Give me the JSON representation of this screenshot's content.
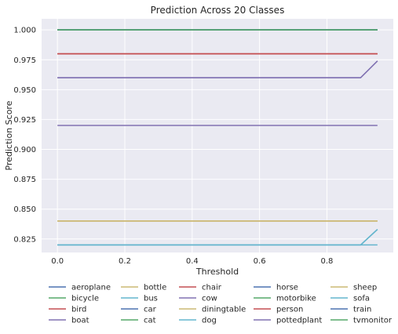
{
  "chart_data": {
    "type": "line",
    "title": "Prediction Across 20 Classes",
    "xlabel": "Threshold",
    "ylabel": "Prediction Score",
    "xlim": [
      -0.047,
      0.997
    ],
    "ylim": [
      0.8137,
      1.0093
    ],
    "xticks": [
      0.0,
      0.2,
      0.4,
      0.6,
      0.8
    ],
    "xtick_labels": [
      "0.0",
      "0.2",
      "0.4",
      "0.6",
      "0.8"
    ],
    "yticks": [
      0.825,
      0.85,
      0.875,
      0.9,
      0.925,
      0.95,
      0.975,
      1.0
    ],
    "ytick_labels": [
      "0.825",
      "0.850",
      "0.875",
      "0.900",
      "0.925",
      "0.950",
      "0.975",
      "1.000"
    ],
    "grid": true,
    "legend_position": "bottom",
    "legend_columns": 5,
    "background": "#eaeaf2",
    "x": [
      0.0,
      0.05,
      0.1,
      0.15,
      0.2,
      0.25,
      0.3,
      0.35,
      0.4,
      0.45,
      0.5,
      0.55,
      0.6,
      0.65,
      0.7,
      0.75,
      0.8,
      0.85,
      0.9,
      0.95
    ],
    "series": [
      {
        "name": "aeroplane",
        "color": "#4c72b0",
        "values": [
          1.0,
          1.0,
          1.0,
          1.0,
          1.0,
          1.0,
          1.0,
          1.0,
          1.0,
          1.0,
          1.0,
          1.0,
          1.0,
          1.0,
          1.0,
          1.0,
          1.0,
          1.0,
          1.0,
          1.0
        ]
      },
      {
        "name": "bicycle",
        "color": "#55a868",
        "values": [
          1.0,
          1.0,
          1.0,
          1.0,
          1.0,
          1.0,
          1.0,
          1.0,
          1.0,
          1.0,
          1.0,
          1.0,
          1.0,
          1.0,
          1.0,
          1.0,
          1.0,
          1.0,
          1.0,
          1.0
        ]
      },
      {
        "name": "bird",
        "color": "#c44e52",
        "values": [
          0.98,
          0.98,
          0.98,
          0.98,
          0.98,
          0.98,
          0.98,
          0.98,
          0.98,
          0.98,
          0.98,
          0.98,
          0.98,
          0.98,
          0.98,
          0.98,
          0.98,
          0.98,
          0.98,
          0.98
        ]
      },
      {
        "name": "boat",
        "color": "#8172b2",
        "values": [
          0.92,
          0.92,
          0.92,
          0.92,
          0.92,
          0.92,
          0.92,
          0.92,
          0.92,
          0.92,
          0.92,
          0.92,
          0.92,
          0.92,
          0.92,
          0.92,
          0.92,
          0.92,
          0.92,
          0.92
        ]
      },
      {
        "name": "bottle",
        "color": "#ccb974",
        "values": [
          0.84,
          0.84,
          0.84,
          0.84,
          0.84,
          0.84,
          0.84,
          0.84,
          0.84,
          0.84,
          0.84,
          0.84,
          0.84,
          0.84,
          0.84,
          0.84,
          0.84,
          0.84,
          0.84,
          0.84
        ]
      },
      {
        "name": "bus",
        "color": "#64b5cd",
        "values": [
          0.82,
          0.82,
          0.82,
          0.82,
          0.82,
          0.82,
          0.82,
          0.82,
          0.82,
          0.82,
          0.82,
          0.82,
          0.82,
          0.82,
          0.82,
          0.82,
          0.82,
          0.82,
          0.82,
          0.82
        ]
      },
      {
        "name": "car",
        "color": "#4c72b0",
        "values": [
          1.0,
          1.0,
          1.0,
          1.0,
          1.0,
          1.0,
          1.0,
          1.0,
          1.0,
          1.0,
          1.0,
          1.0,
          1.0,
          1.0,
          1.0,
          1.0,
          1.0,
          1.0,
          1.0,
          1.0
        ]
      },
      {
        "name": "cat",
        "color": "#55a868",
        "values": [
          1.0,
          1.0,
          1.0,
          1.0,
          1.0,
          1.0,
          1.0,
          1.0,
          1.0,
          1.0,
          1.0,
          1.0,
          1.0,
          1.0,
          1.0,
          1.0,
          1.0,
          1.0,
          1.0,
          1.0
        ]
      },
      {
        "name": "chair",
        "color": "#c44e52",
        "values": [
          0.98,
          0.98,
          0.98,
          0.98,
          0.98,
          0.98,
          0.98,
          0.98,
          0.98,
          0.98,
          0.98,
          0.98,
          0.98,
          0.98,
          0.98,
          0.98,
          0.98,
          0.98,
          0.98,
          0.98
        ]
      },
      {
        "name": "cow",
        "color": "#8172b2",
        "values": [
          0.96,
          0.96,
          0.96,
          0.96,
          0.96,
          0.96,
          0.96,
          0.96,
          0.96,
          0.96,
          0.96,
          0.96,
          0.96,
          0.96,
          0.96,
          0.96,
          0.96,
          0.96,
          0.96,
          0.974
        ]
      },
      {
        "name": "diningtable",
        "color": "#ccb974",
        "values": [
          0.84,
          0.84,
          0.84,
          0.84,
          0.84,
          0.84,
          0.84,
          0.84,
          0.84,
          0.84,
          0.84,
          0.84,
          0.84,
          0.84,
          0.84,
          0.84,
          0.84,
          0.84,
          0.84,
          0.84
        ]
      },
      {
        "name": "dog",
        "color": "#64b5cd",
        "values": [
          0.82,
          0.82,
          0.82,
          0.82,
          0.82,
          0.82,
          0.82,
          0.82,
          0.82,
          0.82,
          0.82,
          0.82,
          0.82,
          0.82,
          0.82,
          0.82,
          0.82,
          0.82,
          0.82,
          0.833
        ]
      },
      {
        "name": "horse",
        "color": "#4c72b0",
        "values": [
          1.0,
          1.0,
          1.0,
          1.0,
          1.0,
          1.0,
          1.0,
          1.0,
          1.0,
          1.0,
          1.0,
          1.0,
          1.0,
          1.0,
          1.0,
          1.0,
          1.0,
          1.0,
          1.0,
          1.0
        ]
      },
      {
        "name": "motorbike",
        "color": "#55a868",
        "values": [
          1.0,
          1.0,
          1.0,
          1.0,
          1.0,
          1.0,
          1.0,
          1.0,
          1.0,
          1.0,
          1.0,
          1.0,
          1.0,
          1.0,
          1.0,
          1.0,
          1.0,
          1.0,
          1.0,
          1.0
        ]
      },
      {
        "name": "person",
        "color": "#c44e52",
        "values": [
          0.98,
          0.98,
          0.98,
          0.98,
          0.98,
          0.98,
          0.98,
          0.98,
          0.98,
          0.98,
          0.98,
          0.98,
          0.98,
          0.98,
          0.98,
          0.98,
          0.98,
          0.98,
          0.98,
          0.98
        ]
      },
      {
        "name": "pottedplant",
        "color": "#8172b2",
        "values": [
          0.96,
          0.96,
          0.96,
          0.96,
          0.96,
          0.96,
          0.96,
          0.96,
          0.96,
          0.96,
          0.96,
          0.96,
          0.96,
          0.96,
          0.96,
          0.96,
          0.96,
          0.96,
          0.96,
          0.974
        ]
      },
      {
        "name": "sheep",
        "color": "#ccb974",
        "values": [
          0.84,
          0.84,
          0.84,
          0.84,
          0.84,
          0.84,
          0.84,
          0.84,
          0.84,
          0.84,
          0.84,
          0.84,
          0.84,
          0.84,
          0.84,
          0.84,
          0.84,
          0.84,
          0.84,
          0.84
        ]
      },
      {
        "name": "sofa",
        "color": "#64b5cd",
        "values": [
          0.82,
          0.82,
          0.82,
          0.82,
          0.82,
          0.82,
          0.82,
          0.82,
          0.82,
          0.82,
          0.82,
          0.82,
          0.82,
          0.82,
          0.82,
          0.82,
          0.82,
          0.82,
          0.82,
          0.833
        ]
      },
      {
        "name": "train",
        "color": "#4c72b0",
        "values": [
          1.0,
          1.0,
          1.0,
          1.0,
          1.0,
          1.0,
          1.0,
          1.0,
          1.0,
          1.0,
          1.0,
          1.0,
          1.0,
          1.0,
          1.0,
          1.0,
          1.0,
          1.0,
          1.0,
          1.0
        ]
      },
      {
        "name": "tvmonitor",
        "color": "#55a868",
        "values": [
          1.0,
          1.0,
          1.0,
          1.0,
          1.0,
          1.0,
          1.0,
          1.0,
          1.0,
          1.0,
          1.0,
          1.0,
          1.0,
          1.0,
          1.0,
          1.0,
          1.0,
          1.0,
          1.0,
          1.0
        ]
      }
    ]
  }
}
